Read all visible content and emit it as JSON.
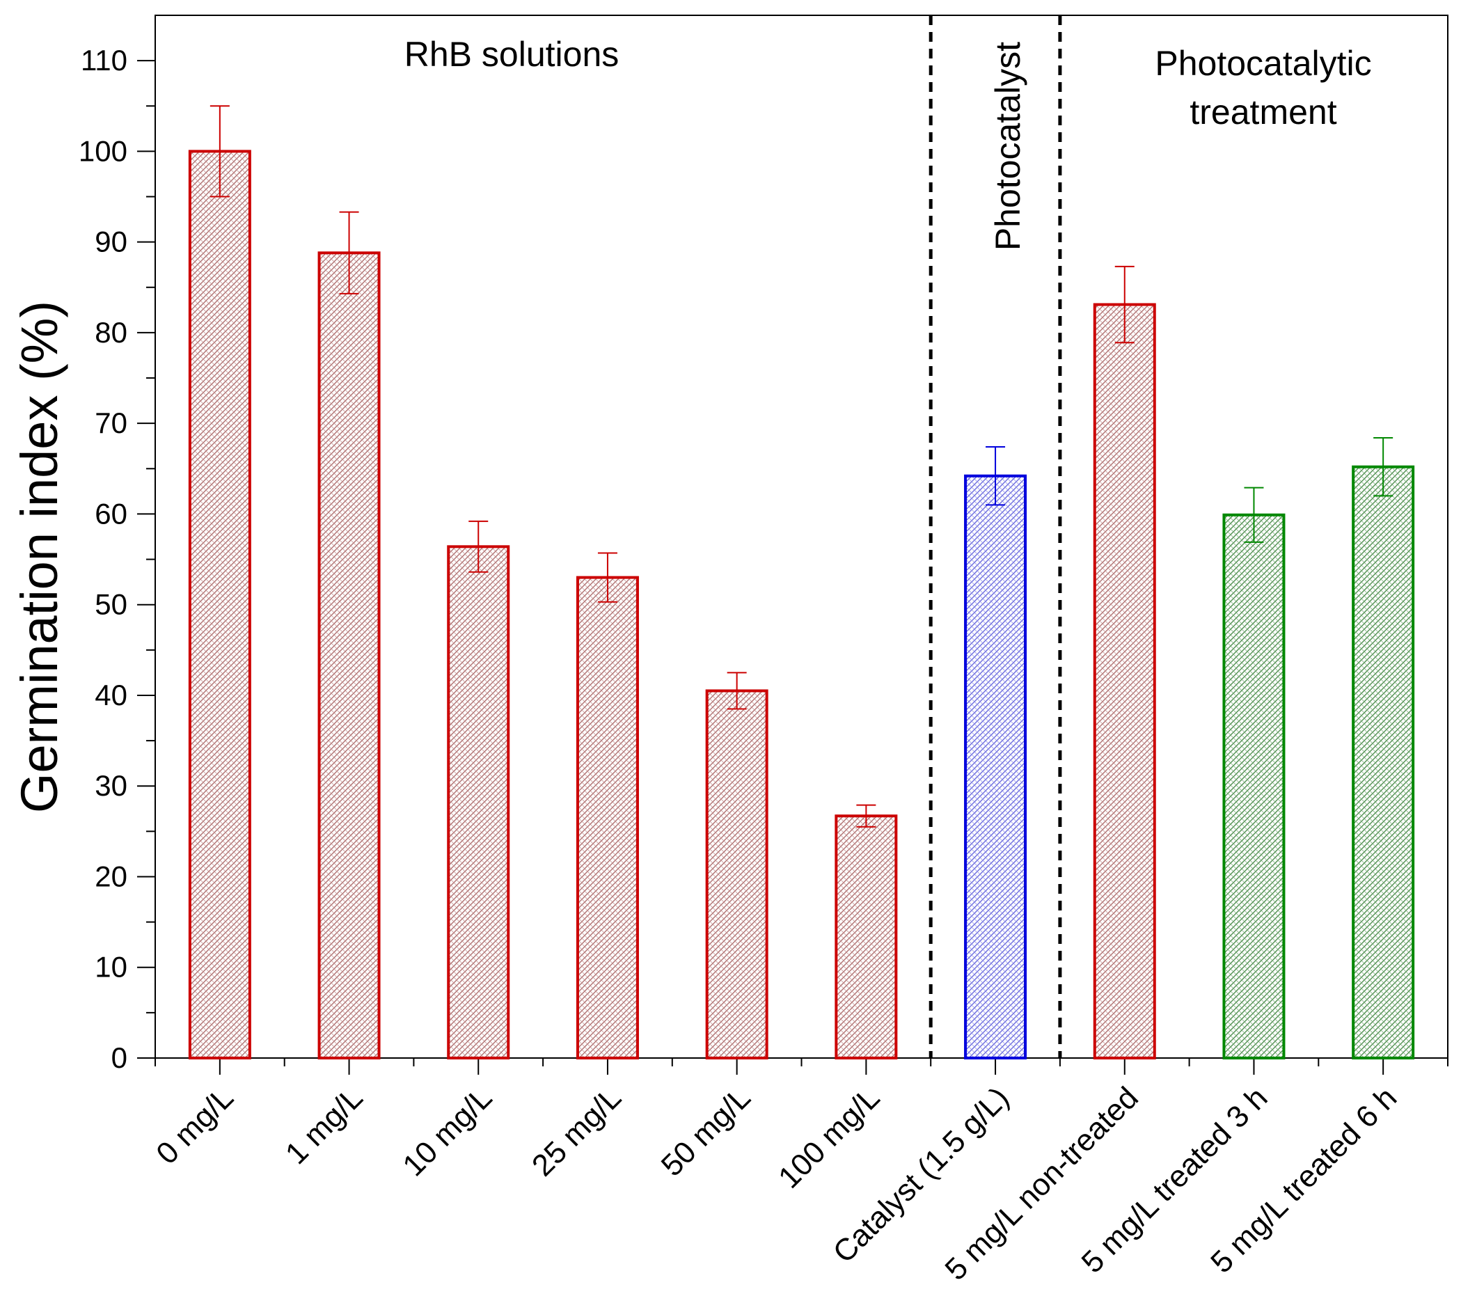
{
  "chart_data": {
    "type": "bar",
    "ylabel": "Germination index (%)",
    "xlabel": "",
    "ylim": [
      0,
      115
    ],
    "yticks": [
      0,
      10,
      20,
      30,
      40,
      50,
      60,
      70,
      80,
      90,
      100,
      110
    ],
    "categories": [
      "0 mg/L",
      "1 mg/L",
      "10 mg/L",
      "25 mg/L",
      "50 mg/L",
      "100 mg/L",
      "Catalyst (1.5 g/L)",
      "5 mg/L non-treated",
      "5 mg/L treated 3 h",
      "5 mg/L treated 6 h"
    ],
    "values": [
      100,
      88.8,
      56.4,
      53,
      40.5,
      26.7,
      64.2,
      83.1,
      59.9,
      65.2
    ],
    "errors": [
      5,
      4.5,
      2.8,
      2.7,
      2.0,
      1.2,
      3.2,
      4.2,
      3.0,
      3.2
    ],
    "groups": [
      "RhB",
      "RhB",
      "RhB",
      "RhB",
      "RhB",
      "RhB",
      "catalyst",
      "RhB",
      "treated",
      "treated"
    ],
    "group_colors": {
      "RhB": "#cc0000",
      "catalyst": "#0000dd",
      "treated": "#008800"
    },
    "section_labels": {
      "rhb": "RhB solutions",
      "photocatalyst": "Photocatalyst",
      "treatment_line1": "Photocatalytic",
      "treatment_line2": "treatment"
    },
    "dividers_after_index": [
      5,
      6
    ],
    "grid": false,
    "legend": "none"
  }
}
